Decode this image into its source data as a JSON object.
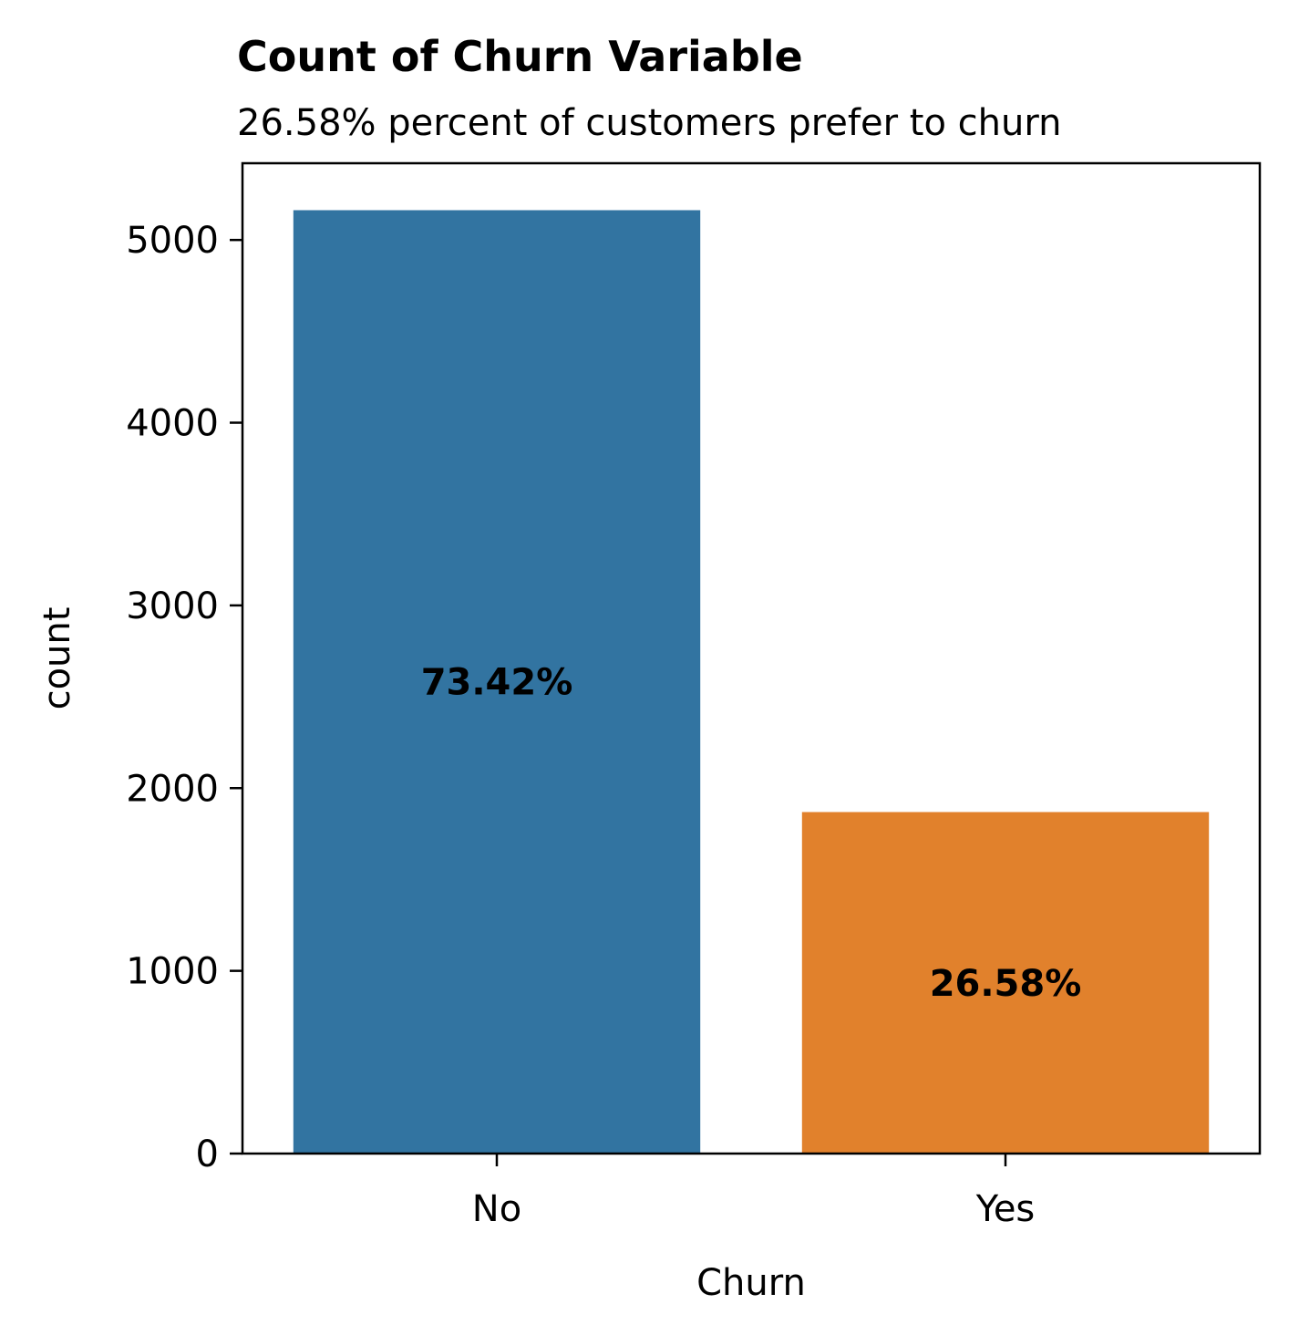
{
  "chart_data": {
    "type": "bar",
    "title": "Count of Churn Variable",
    "subtitle": "26.58% percent of customers prefer to churn",
    "xlabel": "Churn",
    "ylabel": "count",
    "categories": [
      "No",
      "Yes"
    ],
    "values": [
      5163,
      1869
    ],
    "bar_labels": [
      "73.42%",
      "26.58%"
    ],
    "colors": [
      "#3274a1",
      "#e1812c"
    ],
    "ylim": [
      0,
      5420
    ],
    "yticks": [
      0,
      1000,
      2000,
      3000,
      4000,
      5000
    ],
    "ytick_labels": [
      "0",
      "1000",
      "2000",
      "3000",
      "4000",
      "5000"
    ],
    "grid": false,
    "legend": "none"
  }
}
